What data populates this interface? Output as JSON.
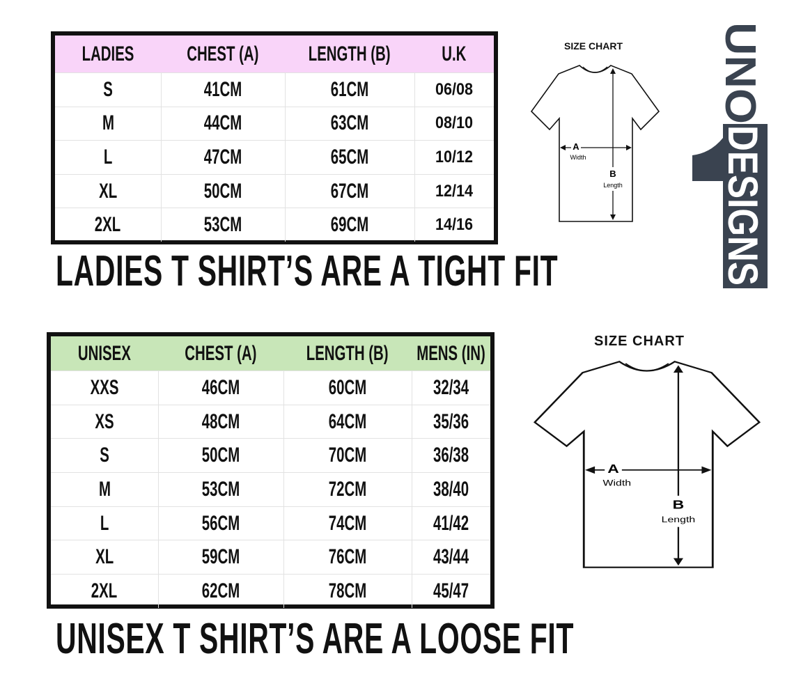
{
  "ladies": {
    "headers": [
      "LADIES",
      "CHEST (A)",
      "LENGTH (B)",
      "U.K"
    ],
    "rows": [
      [
        "S",
        "41CM",
        "61CM",
        "06/08"
      ],
      [
        "M",
        "44CM",
        "63CM",
        "08/10"
      ],
      [
        "L",
        "47CM",
        "65CM",
        "10/12"
      ],
      [
        "XL",
        "50CM",
        "67CM",
        "12/14"
      ],
      [
        "2XL",
        "53CM",
        "69CM",
        "14/16"
      ]
    ],
    "header_color": "#f9d4f9",
    "note": "LADIES T SHIRT’S ARE A TIGHT FIT"
  },
  "unisex": {
    "headers": [
      "UNISEX",
      "CHEST (A)",
      "LENGTH (B)",
      "MENS (IN)"
    ],
    "rows": [
      [
        "XXS",
        "46CM",
        "60CM",
        "32/34"
      ],
      [
        "XS",
        "48CM",
        "64CM",
        "35/36"
      ],
      [
        "S",
        "50CM",
        "70CM",
        "36/38"
      ],
      [
        "M",
        "53CM",
        "72CM",
        "38/40"
      ],
      [
        "L",
        "56CM",
        "74CM",
        "41/42"
      ],
      [
        "XL",
        "59CM",
        "76CM",
        "43/44"
      ],
      [
        "2XL",
        "62CM",
        "78CM",
        "45/47"
      ]
    ],
    "header_color": "#c8e6b8",
    "note": "UNISEX T SHIRT’S ARE A LOOSE FIT"
  },
  "size_chart": {
    "label": "SIZE CHART",
    "a_label": "A",
    "a_sub": "Width",
    "b_label": "B",
    "b_sub": "Length"
  },
  "logo": {
    "text": "UNODESIGNS",
    "color": "#3a4350"
  }
}
